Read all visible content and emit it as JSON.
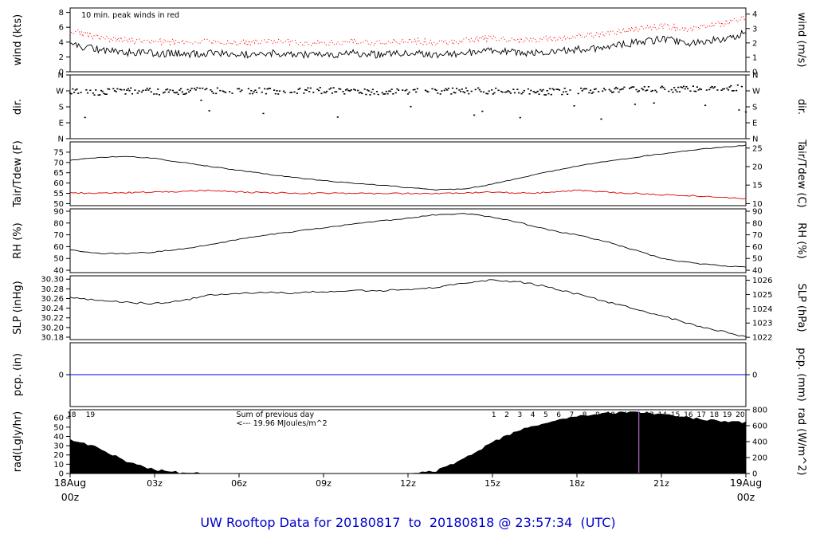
{
  "title": "UW Rooftop Data for 20180817  to  20180818 @ 23:57:34  (UTC)",
  "title_color": "#0000cc",
  "x_axis": {
    "range_hours": [
      0,
      24
    ],
    "tick_hours": [
      3,
      6,
      9,
      12,
      15,
      18,
      21
    ],
    "tick_labels": [
      "03z",
      "06z",
      "09z",
      "12z",
      "15z",
      "18z",
      "21z"
    ],
    "start_label": {
      "line1": "18Aug",
      "line2": "00z"
    },
    "end_label": {
      "line1": "19Aug",
      "line2": "00z"
    },
    "date_label_color": "#ff0000"
  },
  "annotations": {
    "wind_note": {
      "text": "10 min. peak winds in red",
      "color": "#ff0000",
      "panel": "wind",
      "hour": 0.4
    },
    "rad_sum_note": {
      "lines": [
        "Sum of previous day",
        "<--- 19.96 MJoules/m^2"
      ],
      "color": "#aa33cc",
      "panel": "rad",
      "hour": 5.9
    },
    "rad_hour_numbers_left": {
      "values": [
        "18",
        "19"
      ],
      "hours": [
        0.05,
        0.72
      ],
      "color": "#aa33cc"
    },
    "rad_hour_numbers_right": {
      "values": [
        "1",
        "2",
        "3",
        "4",
        "5",
        "6",
        "7",
        "8",
        "9",
        "10",
        "11",
        "12",
        "13",
        "14",
        "15",
        "16",
        "17",
        "18",
        "19",
        "20"
      ],
      "hour_start": 15.05,
      "hour_end": 23.8,
      "color": "#aa33cc"
    },
    "rad_marker_line": {
      "hour": 20.2,
      "color": "#cc88ee"
    }
  },
  "chart_data": {
    "type": "multi-panel time series",
    "x_unit": "hours UTC from 18Aug 00z",
    "x_hours": [
      0,
      1,
      2,
      3,
      4,
      5,
      6,
      7,
      8,
      9,
      10,
      11,
      12,
      13,
      14,
      15,
      16,
      17,
      18,
      19,
      20,
      21,
      22,
      23,
      24
    ],
    "panels": [
      {
        "id": "wind",
        "type": "line",
        "ylabel_left": "wind (kts)",
        "ylabel_right": "wind (m/s)",
        "ylim": [
          0,
          8.6
        ],
        "yticks": {
          "values": [
            0,
            2,
            4,
            6,
            8
          ],
          "labels": [
            "0",
            "2",
            "4",
            "6",
            "8"
          ]
        },
        "ylim_right": [
          0,
          4.424
        ],
        "yticks_right": {
          "values": [
            0,
            1,
            2,
            3,
            4
          ],
          "labels": [
            "0",
            "1",
            "2",
            "3",
            "4"
          ]
        },
        "series": [
          {
            "key": "wind-speed",
            "name": "wind speed",
            "color": "#000000",
            "style": "solid",
            "per": 20,
            "jitter": 0.5,
            "values": [
              3.6,
              3.0,
              2.6,
              2.5,
              2.4,
              2.5,
              2.3,
              2.5,
              2.3,
              2.2,
              2.5,
              2.3,
              2.5,
              2.3,
              2.5,
              2.8,
              2.5,
              2.7,
              3.0,
              3.2,
              3.9,
              4.4,
              3.9,
              4.3,
              5.2
            ]
          },
          {
            "key": "peak-wind",
            "name": "10 min peak wind",
            "color": "#ff0000",
            "style": "dotted",
            "per": 20,
            "jitter": 0.45,
            "values": [
              5.6,
              4.6,
              4.2,
              4.0,
              4.0,
              4.1,
              3.9,
              4.0,
              3.9,
              3.8,
              4.1,
              3.9,
              4.2,
              3.9,
              4.1,
              4.6,
              4.2,
              4.4,
              4.8,
              5.0,
              5.7,
              6.2,
              5.8,
              6.3,
              7.3
            ]
          }
        ]
      },
      {
        "id": "dir",
        "type": "scatter",
        "ylabel_left": "dir.",
        "ylabel_right": "dir.",
        "ylim": [
          0,
          360
        ],
        "yticks": {
          "values": [
            360,
            270,
            180,
            90,
            0
          ],
          "labels": [
            "N",
            "W",
            "S",
            "E",
            "N"
          ]
        },
        "ylim_right": [
          0,
          360
        ],
        "yticks_right": {
          "values": [
            360,
            270,
            180,
            90,
            0
          ],
          "labels": [
            "N",
            "W",
            "S",
            "E",
            "N"
          ]
        },
        "series": [
          {
            "key": "wind-direction",
            "name": "wind direction (deg)",
            "color": "#000000",
            "style": "scatter",
            "jitter": 18,
            "outlier_chance": 0.06,
            "values": [
              268,
              262,
              270,
              266,
              268,
              274,
              264,
              270,
              267,
              272,
              269,
              264,
              270,
              267,
              272,
              269,
              267,
              264,
              270,
              272,
              275,
              278,
              281,
              283,
              286
            ]
          }
        ]
      },
      {
        "id": "tair_tdew",
        "type": "line",
        "ylabel_left": "Tair/Tdew (F)",
        "ylabel_right": "Tair/Tdew (C)",
        "ylim": [
          49,
          80
        ],
        "yticks": {
          "values": [
            50,
            55,
            60,
            65,
            70,
            75
          ],
          "labels": [
            "50",
            "55",
            "60",
            "65",
            "70",
            "75"
          ]
        },
        "ylim_right": [
          9.44,
          26.67
        ],
        "yticks_right": {
          "values": [
            10,
            15,
            20,
            25
          ],
          "labels": [
            "10",
            "15",
            "20",
            "25"
          ]
        },
        "series": [
          {
            "key": "tair",
            "name": "air temperature",
            "color": "#000000",
            "style": "solid",
            "per": 8,
            "jitter": 0.2,
            "values": [
              71.0,
              72.5,
              73.0,
              72.0,
              70.0,
              68.0,
              66.2,
              64.3,
              62.6,
              61.2,
              60.0,
              59.0,
              57.8,
              56.6,
              57.2,
              59.5,
              62.5,
              65.5,
              68.2,
              70.5,
              72.3,
              74.2,
              75.8,
              77.2,
              78.3
            ]
          },
          {
            "key": "tdew",
            "name": "dew point",
            "color": "#dd0000",
            "style": "solid",
            "per": 10,
            "jitter": 0.35,
            "values": [
              55.2,
              55.0,
              55.3,
              55.6,
              55.9,
              56.4,
              55.6,
              55.4,
              55.1,
              55.0,
              55.0,
              54.9,
              55.0,
              55.0,
              55.1,
              55.6,
              55.1,
              55.4,
              56.5,
              55.6,
              55.0,
              54.4,
              53.9,
              53.3,
              52.4
            ]
          }
        ]
      },
      {
        "id": "rh",
        "type": "line",
        "ylabel_left": "RH (%)",
        "ylabel_right": "RH (%)",
        "ylim": [
          38,
          92
        ],
        "yticks": {
          "values": [
            40,
            50,
            60,
            70,
            80,
            90
          ],
          "labels": [
            "40",
            "50",
            "60",
            "70",
            "80",
            "90"
          ]
        },
        "ylim_right": [
          38,
          92
        ],
        "yticks_right": {
          "values": [
            40,
            50,
            60,
            70,
            80,
            90
          ],
          "labels": [
            "40",
            "50",
            "60",
            "70",
            "80",
            "90"
          ]
        },
        "series": [
          {
            "key": "rh",
            "name": "relative humidity",
            "color": "#000000",
            "style": "solid",
            "per": 8,
            "jitter": 0.5,
            "values": [
              57,
              54.5,
              54,
              55.5,
              58,
              62,
              66,
              70,
              73,
              76,
              79,
              81.5,
              84,
              87,
              88,
              85,
              80,
              74,
              70,
              64.5,
              57.5,
              50,
              46.5,
              44,
              42.5
            ]
          }
        ]
      },
      {
        "id": "slp",
        "type": "line",
        "ylabel_left": "SLP (inHg)",
        "ylabel_right": "SLP (hPa)",
        "ylim": [
          30.175,
          30.307
        ],
        "yticks": {
          "values": [
            30.18,
            30.2,
            30.22,
            30.24,
            30.26,
            30.28,
            30.3
          ],
          "labels": [
            "30.18",
            "30.20",
            "30.22",
            "30.24",
            "30.26",
            "30.28",
            "30.30"
          ]
        },
        "ylim_right": [
          1021.84,
          1026.31
        ],
        "yticks_right": {
          "values": [
            1022,
            1023,
            1024,
            1025,
            1026
          ],
          "labels": [
            "1022",
            "1023",
            "1024",
            "1025",
            "1026"
          ]
        },
        "series": [
          {
            "key": "slp",
            "name": "sea level pressure",
            "color": "#000000",
            "style": "solid",
            "per": 8,
            "jitter": 0.002,
            "values": [
              30.262,
              30.257,
              30.252,
              30.25,
              30.256,
              30.268,
              30.271,
              30.272,
              30.272,
              30.274,
              30.276,
              30.276,
              30.278,
              30.283,
              30.292,
              30.298,
              30.294,
              30.284,
              30.269,
              30.254,
              30.24,
              30.224,
              30.208,
              30.194,
              30.181
            ]
          }
        ]
      },
      {
        "id": "pcp",
        "type": "line",
        "ylabel_left": "pcp. (in)",
        "ylabel_right": "pcp. (mm)",
        "ylim": [
          -1,
          1
        ],
        "yticks": {
          "values": [
            0
          ],
          "labels": [
            "0"
          ]
        },
        "ylim_right": [
          -1,
          1
        ],
        "yticks_right": {
          "values": [
            0
          ],
          "labels": [
            "0"
          ]
        },
        "series": [
          {
            "key": "pcp",
            "name": "precipitation",
            "color": "#0000ff",
            "style": "solid",
            "per": 2,
            "jitter": 0,
            "values": [
              0,
              0,
              0,
              0,
              0,
              0,
              0,
              0,
              0,
              0,
              0,
              0,
              0,
              0,
              0,
              0,
              0,
              0,
              0,
              0,
              0,
              0,
              0,
              0,
              0
            ]
          }
        ]
      },
      {
        "id": "rad",
        "type": "area",
        "ylabel_left": "rad(Lgly/hr)",
        "ylabel_right": "rad (W/m^2)",
        "ylim": [
          0,
          68.8
        ],
        "yticks": {
          "values": [
            0,
            10,
            20,
            30,
            40,
            50,
            60
          ],
          "labels": [
            "0",
            "10",
            "20",
            "30",
            "40",
            "50",
            "60"
          ]
        },
        "ylim_right": [
          0,
          800.1
        ],
        "yticks_right": {
          "values": [
            0,
            200,
            400,
            600,
            800
          ],
          "labels": [
            "0",
            "200",
            "400",
            "600",
            "800"
          ]
        },
        "series": [
          {
            "key": "rad",
            "name": "solar radiation",
            "color": "#000000",
            "style": "area",
            "per": 8,
            "jitter": 1.2,
            "values": [
              37,
              28,
              13,
              4,
              1,
              0,
              0,
              0,
              0,
              0,
              0,
              0,
              0,
              3,
              16,
              34,
              47,
              56,
              62,
              65,
              66,
              64,
              60,
              57,
              55
            ]
          }
        ]
      }
    ]
  }
}
